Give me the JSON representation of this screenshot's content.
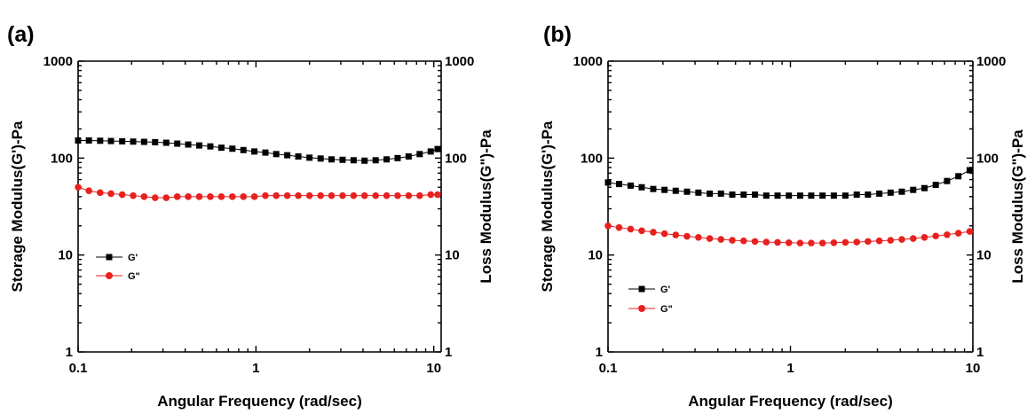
{
  "chart_data": [
    {
      "type": "scatter",
      "panel_label": "(a)",
      "xlabel": "Angular Frequency (rad/sec)",
      "ylabel": "Storage Modulus(G')-Pa",
      "y2label": "Loss Modulus(G\")-Pa",
      "xscale": "log",
      "yscale": "log",
      "xlim": [
        0.1,
        11
      ],
      "ylim": [
        1,
        1000
      ],
      "x_ticks": [
        "0.1",
        "1",
        "10"
      ],
      "y_ticks": [
        "1",
        "10",
        "100",
        "1000"
      ],
      "y2_ticks": [
        "1",
        "10",
        "100",
        "1000"
      ],
      "legend_position": "left-middle",
      "series": [
        {
          "name": "G'",
          "marker": "square",
          "color": "#000000",
          "x": [
            0.1,
            0.115,
            0.133,
            0.153,
            0.177,
            0.204,
            0.235,
            0.271,
            0.313,
            0.361,
            0.416,
            0.48,
            0.554,
            0.639,
            0.737,
            0.85,
            0.98,
            1.13,
            1.3,
            1.5,
            1.73,
            2.0,
            2.31,
            2.66,
            3.07,
            3.54,
            4.08,
            4.71,
            5.43,
            6.26,
            7.22,
            8.33,
            9.61,
            10.5
          ],
          "y": [
            152,
            152,
            151,
            150,
            149,
            148,
            147,
            146,
            144,
            141,
            138,
            135,
            132,
            128,
            125,
            121,
            117,
            114,
            110,
            107,
            104,
            101,
            99,
            97,
            96,
            95,
            94,
            95,
            97,
            100,
            104,
            110,
            117,
            124
          ]
        },
        {
          "name": "G\"",
          "marker": "circle",
          "color": "#e8201e",
          "x": [
            0.1,
            0.115,
            0.133,
            0.153,
            0.177,
            0.204,
            0.235,
            0.271,
            0.313,
            0.361,
            0.416,
            0.48,
            0.554,
            0.639,
            0.737,
            0.85,
            0.98,
            1.13,
            1.3,
            1.5,
            1.73,
            2.0,
            2.31,
            2.66,
            3.07,
            3.54,
            4.08,
            4.71,
            5.43,
            6.26,
            7.22,
            8.33,
            9.61,
            10.5
          ],
          "y": [
            50,
            46,
            44,
            43,
            42,
            41,
            40,
            39,
            39,
            40,
            40,
            40,
            40,
            40,
            40,
            40,
            40,
            41,
            41,
            41,
            41,
            41,
            41,
            41,
            41,
            41,
            41,
            41,
            41,
            41,
            41,
            41,
            42,
            42
          ]
        }
      ]
    },
    {
      "type": "scatter",
      "panel_label": "(b)",
      "xlabel": "Angular Frequency (rad/sec)",
      "ylabel": "Storage Modulus(G')-Pa",
      "y2label": "Loss Modulus(G\")-Pa",
      "xscale": "log",
      "yscale": "log",
      "xlim": [
        0.1,
        10
      ],
      "ylim": [
        1,
        1000
      ],
      "x_ticks": [
        "0.1",
        "1",
        "10"
      ],
      "y_ticks": [
        "1",
        "10",
        "100",
        "1000"
      ],
      "y2_ticks": [
        "1",
        "10",
        "100",
        "1000"
      ],
      "legend_position": "left-lower",
      "series": [
        {
          "name": "G'",
          "marker": "square",
          "color": "#000000",
          "x": [
            0.1,
            0.115,
            0.133,
            0.153,
            0.177,
            0.204,
            0.235,
            0.271,
            0.313,
            0.361,
            0.416,
            0.48,
            0.554,
            0.639,
            0.737,
            0.85,
            0.98,
            1.13,
            1.3,
            1.5,
            1.73,
            2.0,
            2.31,
            2.66,
            3.07,
            3.54,
            4.08,
            4.71,
            5.43,
            6.26,
            7.22,
            8.33,
            9.61
          ],
          "y": [
            56,
            54,
            52,
            50,
            48,
            47,
            46,
            45,
            44,
            43,
            43,
            42,
            42,
            42,
            41,
            41,
            41,
            41,
            41,
            41,
            41,
            41,
            42,
            42,
            43,
            44,
            45,
            47,
            49,
            53,
            58,
            65,
            75
          ]
        },
        {
          "name": "G\"",
          "marker": "circle",
          "color": "#e8201e",
          "x": [
            0.1,
            0.115,
            0.133,
            0.153,
            0.177,
            0.204,
            0.235,
            0.271,
            0.313,
            0.361,
            0.416,
            0.48,
            0.554,
            0.639,
            0.737,
            0.85,
            0.98,
            1.13,
            1.3,
            1.5,
            1.73,
            2.0,
            2.31,
            2.66,
            3.07,
            3.54,
            4.08,
            4.71,
            5.43,
            6.26,
            7.22,
            8.33,
            9.61
          ],
          "y": [
            20,
            19.2,
            18.5,
            17.8,
            17.2,
            16.6,
            16.1,
            15.6,
            15.2,
            14.8,
            14.5,
            14.2,
            14.0,
            13.8,
            13.6,
            13.5,
            13.4,
            13.3,
            13.3,
            13.3,
            13.4,
            13.5,
            13.6,
            13.8,
            14.0,
            14.2,
            14.5,
            14.8,
            15.2,
            15.7,
            16.2,
            16.8,
            17.5
          ]
        }
      ]
    }
  ]
}
